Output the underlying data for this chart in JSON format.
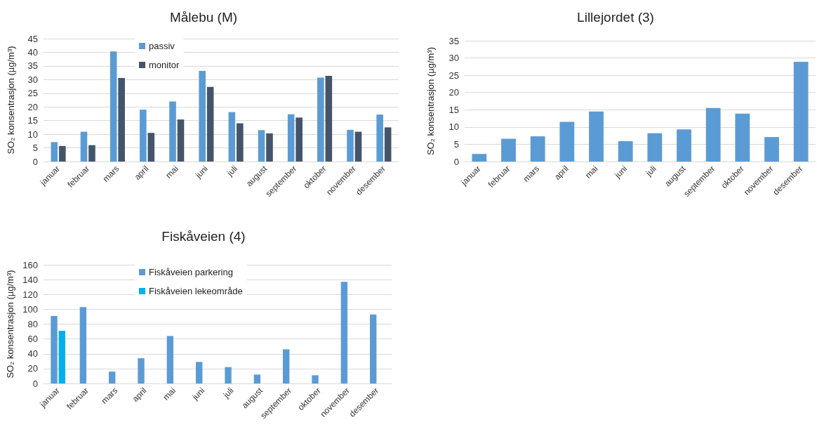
{
  "chart_data": [
    {
      "type": "bar",
      "title": "Målebu (M)",
      "ylabel": "SO₂ konsentrasjon (µg/m³)",
      "categories": [
        "januar",
        "februar",
        "mars",
        "april",
        "mai",
        "juni",
        "juli",
        "august",
        "september",
        "oktober",
        "november",
        "desember"
      ],
      "series": [
        {
          "name": "passiv",
          "color": "#5b9bd5",
          "values": [
            7.1,
            10.9,
            40.3,
            19,
            22,
            33.2,
            18.1,
            11.5,
            17.3,
            30.7,
            11.6,
            17.2
          ]
        },
        {
          "name": "monitor",
          "color": "#44546a",
          "values": [
            5.7,
            6,
            30.6,
            10.5,
            15.4,
            27.3,
            14,
            10.3,
            16.1,
            31.4,
            10.9,
            12.5
          ]
        }
      ],
      "ylim": [
        0,
        45
      ],
      "yticks": [
        0,
        5,
        10,
        15,
        20,
        25,
        30,
        35,
        40,
        45
      ],
      "grid": "y",
      "legend": "top left"
    },
    {
      "type": "bar",
      "title": "Lillejordet (3)",
      "ylabel": "SO₂ konsentrasjon (µg/m³)",
      "categories": [
        "januar",
        "februar",
        "mars",
        "april",
        "mai",
        "juni",
        "juli",
        "august",
        "september",
        "oktober",
        "november",
        "desember"
      ],
      "series": [
        {
          "color": "#5b9bd5",
          "values": [
            2.2,
            6.6,
            7.3,
            11.5,
            14.5,
            5.9,
            8.2,
            9.3,
            15.5,
            13.9,
            7.1,
            28.9
          ]
        }
      ],
      "ylim": [
        0,
        35
      ],
      "yticks": [
        0,
        5,
        10,
        15,
        20,
        25,
        30,
        35
      ],
      "grid": "y"
    },
    {
      "type": "bar",
      "title": "Fiskåveien (4)",
      "ylabel": "SO₂ konsentrasjon (µg/m³)",
      "categories": [
        "januar",
        "februar",
        "mars",
        "april",
        "mai",
        "juni",
        "juli",
        "august",
        "september",
        "oktober",
        "november",
        "desember"
      ],
      "series": [
        {
          "name": "Fiskåveien parkering",
          "color": "#5b9bd5",
          "values": [
            91,
            103,
            16,
            34,
            64,
            29,
            22,
            12,
            46,
            11,
            137,
            93
          ]
        },
        {
          "name": "Fiskåveien lekeområde",
          "color": "#00b0f0",
          "values": [
            71,
            null,
            null,
            null,
            null,
            null,
            null,
            null,
            null,
            null,
            null,
            null
          ]
        }
      ],
      "ylim": [
        0,
        160
      ],
      "yticks": [
        0,
        20,
        40,
        60,
        80,
        100,
        120,
        140,
        160
      ],
      "grid": "y",
      "legend": "top left"
    }
  ]
}
